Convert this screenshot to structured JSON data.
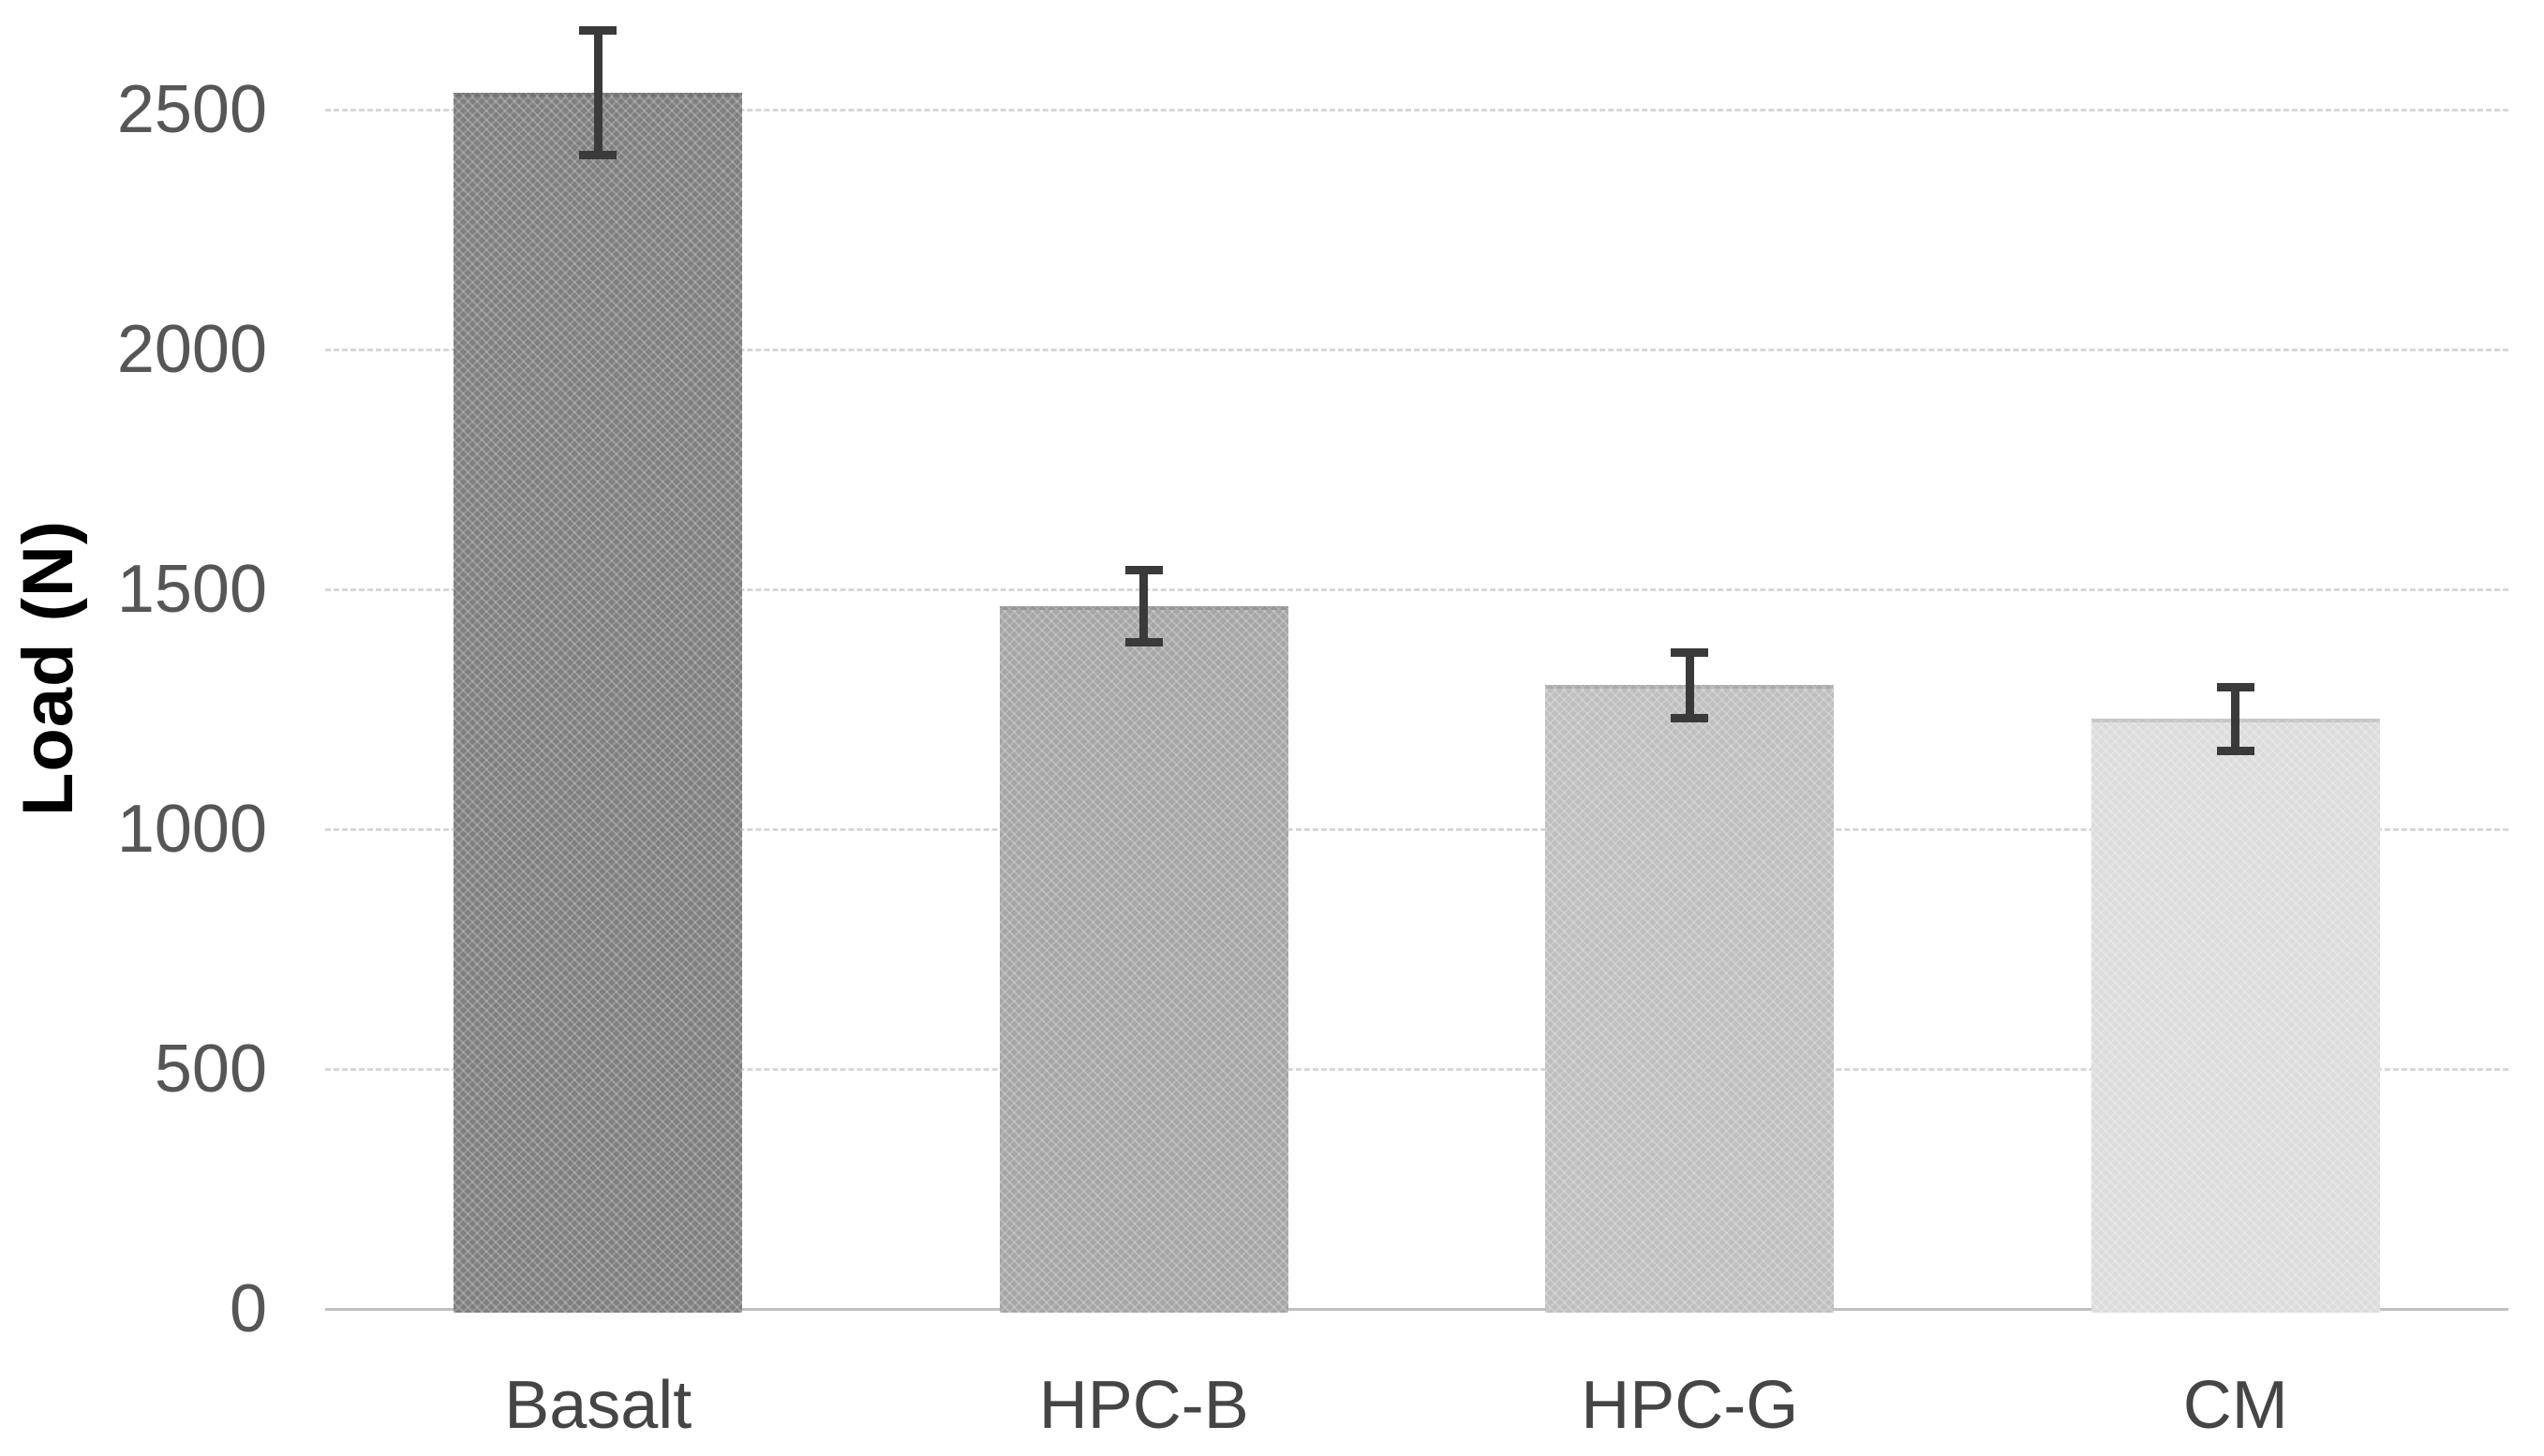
{
  "chart_data": {
    "type": "bar",
    "title": "",
    "xlabel": "",
    "ylabel": "Load (N)",
    "categories": [
      "Basalt",
      "HPC-B",
      "HPC-G",
      "CM"
    ],
    "series": [
      {
        "name": "Load",
        "values": [
          2535,
          1465,
          1300,
          1230
        ]
      }
    ],
    "error_bars": [
      130,
      75,
      68,
      66
    ],
    "yticks": [
      0,
      500,
      1000,
      1500,
      2000,
      2500
    ],
    "ylim": [
      0,
      2728
    ],
    "grid": "horizontal-dashed",
    "legend": "none",
    "bar_colors": [
      "#7f7f7f",
      "#a6a6a6",
      "#bfbfbf",
      "#dcdcdc"
    ],
    "error_bar_color": "#3a3a3a",
    "gridline_color": "#d7d7d7",
    "axis_line_color": "#c0c0c0",
    "ytick_label_color": "#565656",
    "category_label_color": "#454545",
    "axis_title_color": "#000000",
    "background_color": "#ffffff"
  }
}
